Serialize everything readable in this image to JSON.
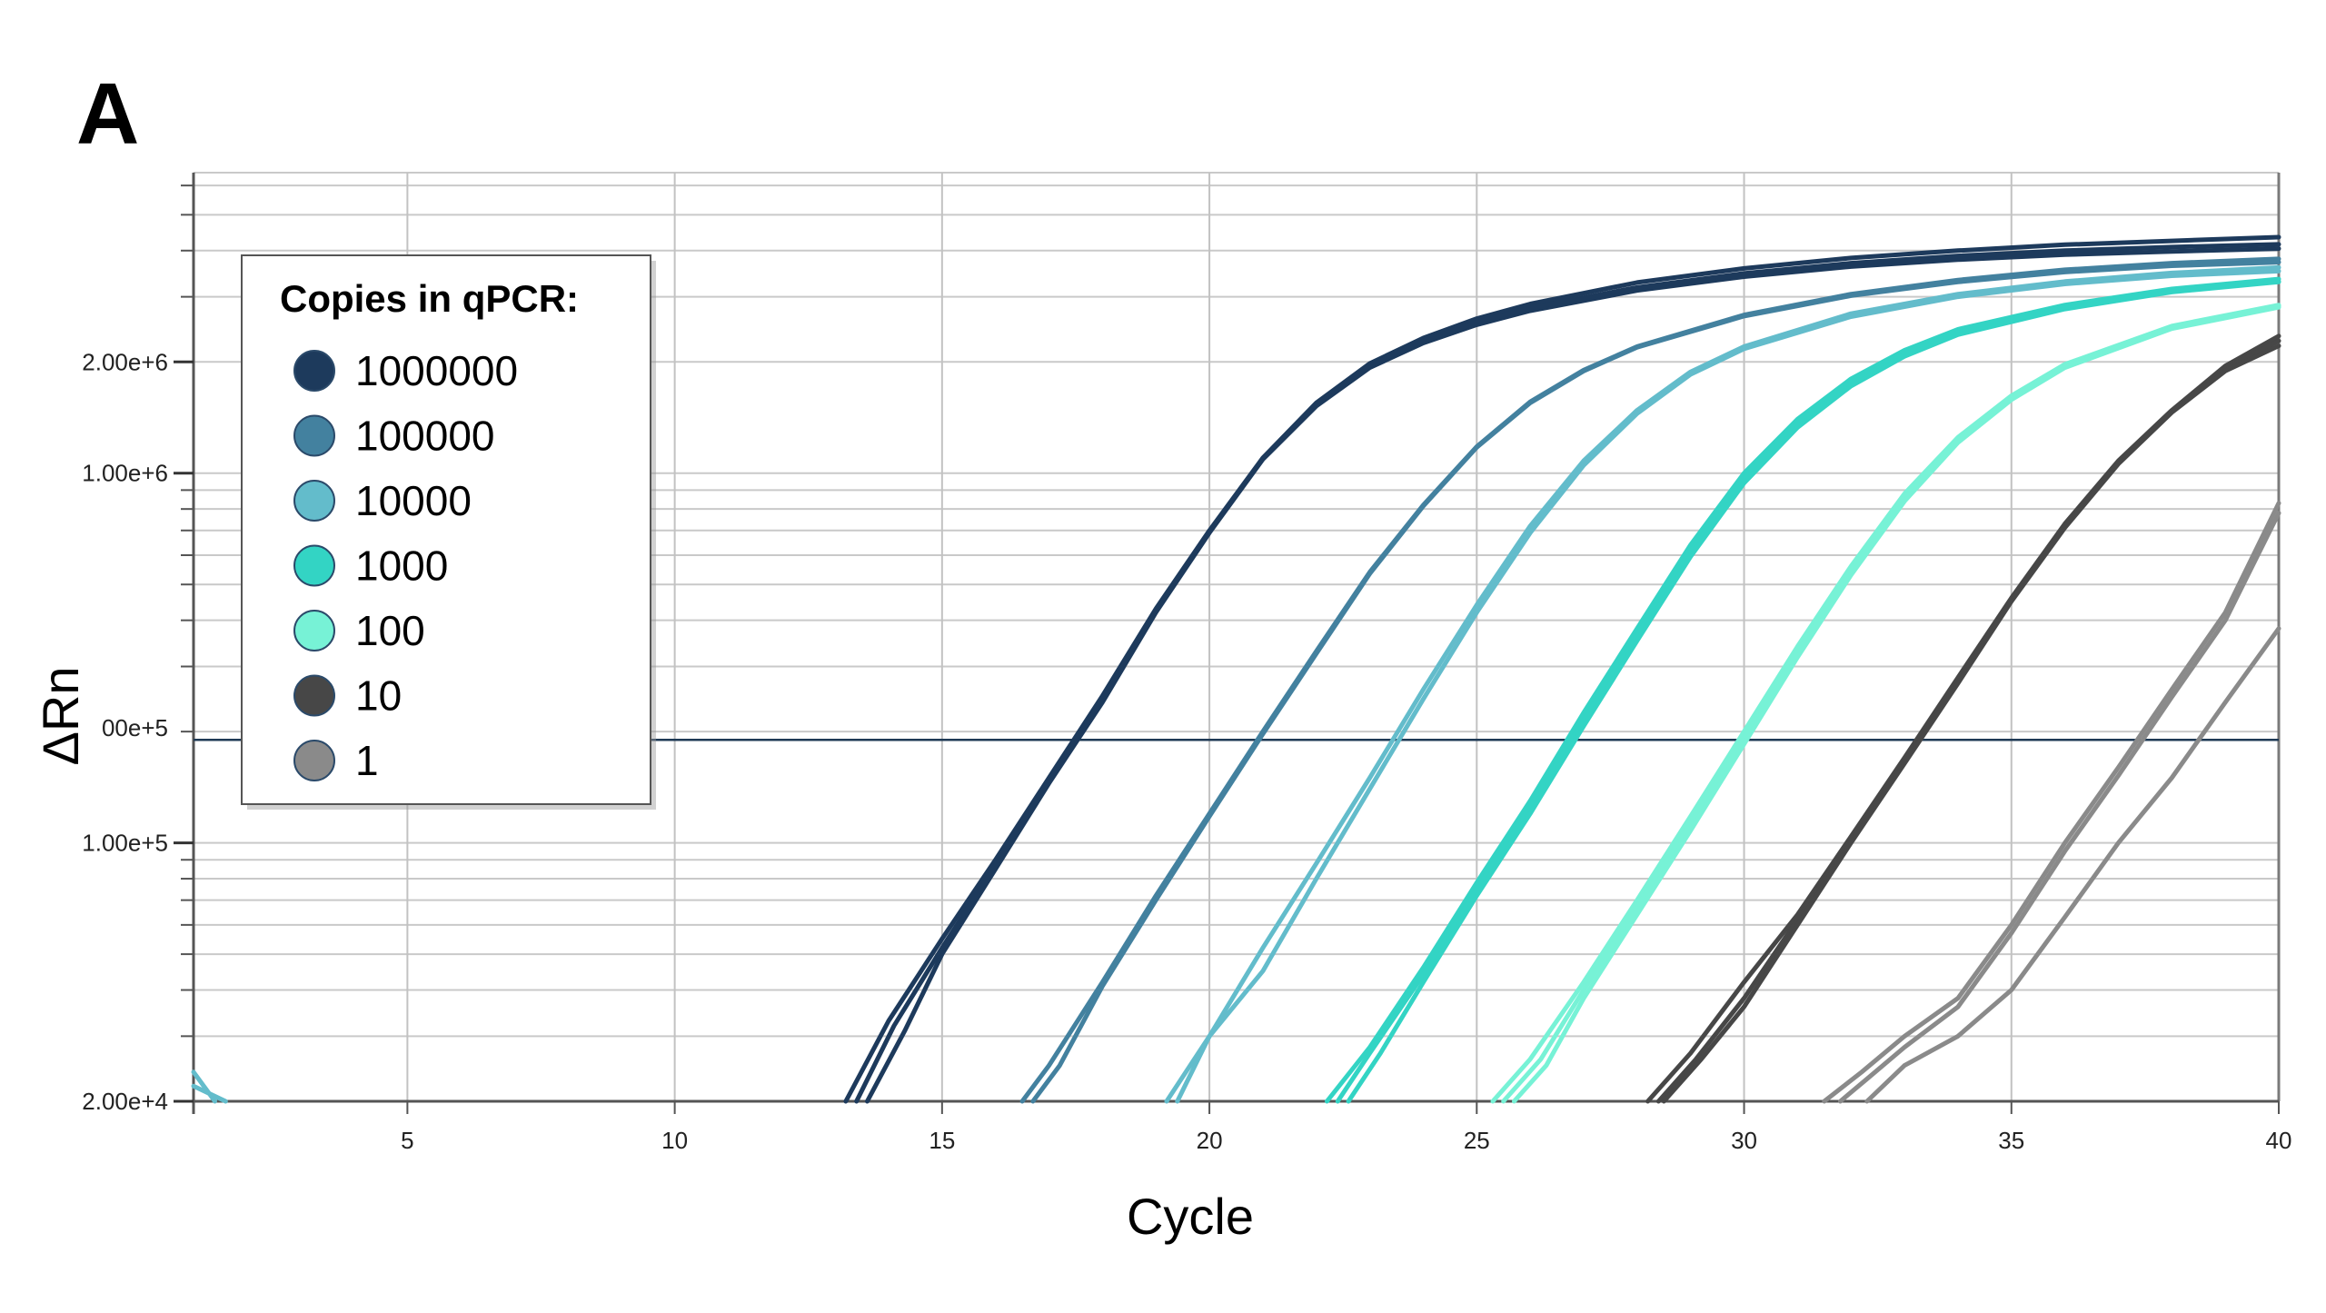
{
  "panel_label": "A",
  "chart_data": {
    "type": "line",
    "xlabel": "Cycle",
    "ylabel": "ΔRn",
    "x_scale": "linear",
    "y_scale": "log",
    "xlim": [
      1,
      40
    ],
    "ylim": [
      20000,
      6500000
    ],
    "x_ticks": [
      5,
      10,
      15,
      20,
      25,
      30,
      35,
      40
    ],
    "x_tick_labels": [
      "5",
      "10",
      "15",
      "20",
      "25",
      "30",
      "35",
      "40"
    ],
    "y_ticks": [
      20000,
      100000,
      1000000,
      2000000
    ],
    "y_tick_labels": [
      "2.00e+4",
      "1.00e+5",
      "1.00e+6",
      "2.00e+6"
    ],
    "threshold": {
      "value": 190000,
      "label_fragment": "00e+5",
      "color": "#1f3a55"
    },
    "grid": true,
    "legend": {
      "title": "Copies in qPCR:",
      "position": "top-left",
      "entries": [
        {
          "label": "1000000",
          "color": "#1d3a5c"
        },
        {
          "label": "100000",
          "color": "#43819f"
        },
        {
          "label": "10000",
          "color": "#63bccb"
        },
        {
          "label": "1000",
          "color": "#33d4c4"
        },
        {
          "label": "100",
          "color": "#77f2d6"
        },
        {
          "label": "10",
          "color": "#474747"
        },
        {
          "label": "1",
          "color": "#8a8a8a"
        }
      ]
    },
    "series": [
      {
        "name": "1000000",
        "color": "#1d3a5c",
        "x": [
          13.2,
          14,
          15,
          16,
          17,
          18,
          19,
          20,
          21,
          22,
          23,
          24,
          25,
          26,
          28,
          30,
          32,
          34,
          36,
          38,
          40
        ],
        "y": [
          20000,
          33000,
          55000,
          90000,
          150000,
          250000,
          430000,
          700000,
          1100000,
          1550000,
          1980000,
          2320000,
          2620000,
          2870000,
          3280000,
          3580000,
          3820000,
          4000000,
          4150000,
          4250000,
          4350000
        ]
      },
      {
        "name": "1000000",
        "color": "#1d3a5c",
        "x": [
          13.6,
          14.3,
          15,
          16,
          17,
          18,
          19,
          20,
          21,
          22,
          23,
          24,
          25,
          26,
          28,
          30,
          32,
          34,
          36,
          38,
          40
        ],
        "y": [
          20000,
          31000,
          50000,
          85000,
          145000,
          240000,
          420000,
          690000,
          1090000,
          1520000,
          1930000,
          2250000,
          2520000,
          2750000,
          3120000,
          3400000,
          3620000,
          3780000,
          3900000,
          3980000,
          4050000
        ]
      },
      {
        "name": "1000000",
        "color": "#1d3a5c",
        "x": [
          13.4,
          14.1,
          15,
          16,
          17,
          18,
          19,
          20,
          21,
          22,
          23,
          24,
          25,
          26,
          28,
          30,
          32,
          34,
          36,
          38,
          40
        ],
        "y": [
          20000,
          32000,
          52000,
          87000,
          148000,
          245000,
          425000,
          695000,
          1095000,
          1535000,
          1950000,
          2280000,
          2560000,
          2800000,
          3180000,
          3470000,
          3700000,
          3870000,
          4000000,
          4090000,
          4160000
        ]
      },
      {
        "name": "100000",
        "color": "#43819f",
        "x": [
          16.5,
          17,
          18,
          19,
          20,
          21,
          22,
          23,
          24,
          25,
          26,
          27,
          28,
          30,
          32,
          34,
          36,
          38,
          40
        ],
        "y": [
          20000,
          25000,
          42000,
          72000,
          120000,
          200000,
          330000,
          540000,
          820000,
          1180000,
          1560000,
          1900000,
          2200000,
          2680000,
          3050000,
          3330000,
          3550000,
          3700000,
          3800000
        ]
      },
      {
        "name": "100000",
        "color": "#43819f",
        "x": [
          16.7,
          17.2,
          18,
          19,
          20,
          21,
          22,
          23,
          24,
          25,
          26,
          27,
          28,
          30,
          32,
          34,
          36,
          38,
          40
        ],
        "y": [
          20000,
          25000,
          41000,
          70000,
          118000,
          197000,
          325000,
          535000,
          815000,
          1175000,
          1550000,
          1890000,
          2190000,
          2660000,
          3020000,
          3290000,
          3500000,
          3640000,
          3720000
        ]
      },
      {
        "name": "10000",
        "color": "#63bccb",
        "x": [
          19.2,
          20,
          21,
          22,
          23,
          24,
          25,
          26,
          27,
          28,
          29,
          30,
          32,
          34,
          36,
          38,
          40
        ],
        "y": [
          20000,
          30000,
          52000,
          88000,
          150000,
          260000,
          440000,
          720000,
          1080000,
          1480000,
          1880000,
          2200000,
          2700000,
          3050000,
          3300000,
          3480000,
          3600000
        ]
      },
      {
        "name": "10000",
        "color": "#63bccb",
        "x": [
          19.4,
          20,
          21,
          22,
          23,
          24,
          25,
          26,
          27,
          28,
          29,
          30,
          32,
          34,
          36,
          38,
          40
        ],
        "y": [
          20000,
          30000,
          45000,
          80000,
          140000,
          245000,
          420000,
          690000,
          1050000,
          1450000,
          1850000,
          2170000,
          2650000,
          3000000,
          3250000,
          3420000,
          3520000
        ]
      },
      {
        "name": "1000",
        "color": "#33d4c4",
        "x": [
          22.2,
          23,
          24,
          25,
          26,
          27,
          28,
          29,
          30,
          31,
          32,
          33,
          34,
          36,
          38,
          40
        ],
        "y": [
          20000,
          28000,
          46000,
          78000,
          130000,
          225000,
          380000,
          640000,
          1000000,
          1400000,
          1800000,
          2150000,
          2450000,
          2850000,
          3150000,
          3350000
        ]
      },
      {
        "name": "1000",
        "color": "#33d4c4",
        "x": [
          22.4,
          23,
          24,
          25,
          26,
          27,
          28,
          29,
          30,
          31,
          32,
          33,
          34,
          36,
          38,
          40
        ],
        "y": [
          20000,
          27000,
          44000,
          75000,
          125000,
          215000,
          365000,
          615000,
          970000,
          1360000,
          1750000,
          2100000,
          2400000,
          2800000,
          3100000,
          3300000
        ]
      },
      {
        "name": "1000",
        "color": "#33d4c4",
        "x": [
          22.6,
          23.2,
          24,
          25,
          26,
          27,
          28,
          29,
          30,
          31,
          32,
          33,
          34,
          36,
          38,
          40
        ],
        "y": [
          20000,
          27000,
          42000,
          72000,
          120000,
          207000,
          352000,
          595000,
          940000,
          1330000,
          1720000,
          2070000,
          2370000,
          2780000,
          3090000,
          3290000
        ]
      },
      {
        "name": "100",
        "color": "#77f2d6",
        "x": [
          25.3,
          26,
          27,
          28,
          29,
          30,
          31,
          32,
          33,
          34,
          35,
          36,
          38,
          40
        ],
        "y": [
          20000,
          26000,
          42000,
          70000,
          118000,
          200000,
          340000,
          560000,
          880000,
          1250000,
          1620000,
          1970000,
          2500000,
          2850000
        ]
      },
      {
        "name": "100",
        "color": "#77f2d6",
        "x": [
          25.5,
          26.2,
          27,
          28,
          29,
          30,
          31,
          32,
          33,
          34,
          35,
          36,
          38,
          40
        ],
        "y": [
          20000,
          26000,
          40000,
          67000,
          113000,
          192000,
          328000,
          545000,
          860000,
          1230000,
          1600000,
          1950000,
          2480000,
          2830000
        ]
      },
      {
        "name": "100",
        "color": "#77f2d6",
        "x": [
          25.7,
          26.3,
          27,
          28,
          29,
          30,
          31,
          32,
          33,
          34,
          35,
          36,
          38,
          40
        ],
        "y": [
          20000,
          25000,
          38000,
          64000,
          108000,
          185000,
          318000,
          530000,
          840000,
          1210000,
          1580000,
          1930000,
          2460000,
          2810000
        ]
      },
      {
        "name": "10",
        "color": "#474747",
        "x": [
          28.2,
          29,
          30,
          31,
          32,
          33,
          34,
          35,
          36,
          37,
          38,
          39,
          40
        ],
        "y": [
          20000,
          27000,
          42000,
          64000,
          104000,
          170000,
          280000,
          460000,
          730000,
          1080000,
          1480000,
          1950000,
          2350000
        ]
      },
      {
        "name": "10",
        "color": "#474747",
        "x": [
          28.4,
          29.1,
          30,
          31,
          32,
          33,
          34,
          35,
          36,
          37,
          38,
          39,
          40
        ],
        "y": [
          20000,
          26000,
          38000,
          62000,
          102000,
          167000,
          275000,
          455000,
          720000,
          1070000,
          1470000,
          1920000,
          2280000
        ]
      },
      {
        "name": "10",
        "color": "#474747",
        "x": [
          28.5,
          29.2,
          30,
          31,
          32,
          33,
          34,
          35,
          36,
          37,
          38,
          39,
          40
        ],
        "y": [
          20000,
          26000,
          36000,
          60000,
          100000,
          164000,
          270000,
          450000,
          712000,
          1060000,
          1460000,
          1890000,
          2210000
        ]
      },
      {
        "name": "1",
        "color": "#8a8a8a",
        "x": [
          31.5,
          32.2,
          33,
          34,
          35,
          36,
          37,
          38,
          39,
          40
        ],
        "y": [
          20000,
          24000,
          30000,
          38000,
          60000,
          100000,
          160000,
          260000,
          420000,
          830000
        ]
      },
      {
        "name": "1",
        "color": "#8a8a8a",
        "x": [
          31.8,
          32.3,
          33,
          34,
          35,
          36,
          37,
          38,
          39,
          40
        ],
        "y": [
          20000,
          23000,
          28000,
          36000,
          57000,
          95000,
          152000,
          248000,
          400000,
          780000
        ]
      },
      {
        "name": "1",
        "color": "#8a8a8a",
        "x": [
          32.3,
          33,
          34,
          35,
          36,
          37,
          38,
          39,
          40
        ],
        "y": [
          20000,
          25000,
          30000,
          40000,
          63000,
          100000,
          150000,
          240000,
          380000
        ]
      },
      {
        "name": "10000",
        "color": "#63bccb",
        "x": [
          1,
          1.4
        ],
        "y": [
          24000,
          20000
        ]
      },
      {
        "name": "10000",
        "color": "#63bccb",
        "x": [
          1,
          1.6
        ],
        "y": [
          22000,
          20000
        ]
      }
    ]
  }
}
